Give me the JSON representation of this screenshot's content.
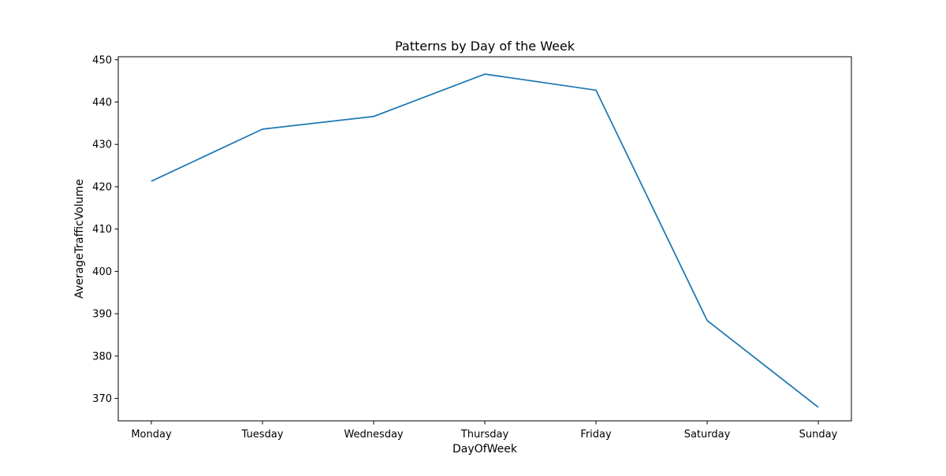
{
  "chart_data": {
    "type": "line",
    "title": "Patterns by Day of the Week",
    "xlabel": "DayOfWeek",
    "ylabel": "AverageTrafficVolume",
    "categories": [
      "Monday",
      "Tuesday",
      "Wednesday",
      "Thursday",
      "Friday",
      "Saturday",
      "Sunday"
    ],
    "series": [
      {
        "values": [
          421.3,
          433.6,
          436.6,
          446.6,
          442.8,
          388.4,
          367.9
        ],
        "color": "#1f77b4"
      }
    ],
    "ylim": [
      364.7,
      450.7
    ],
    "yticks": [
      370,
      380,
      390,
      400,
      410,
      420,
      430,
      440,
      450
    ],
    "grid": false
  }
}
